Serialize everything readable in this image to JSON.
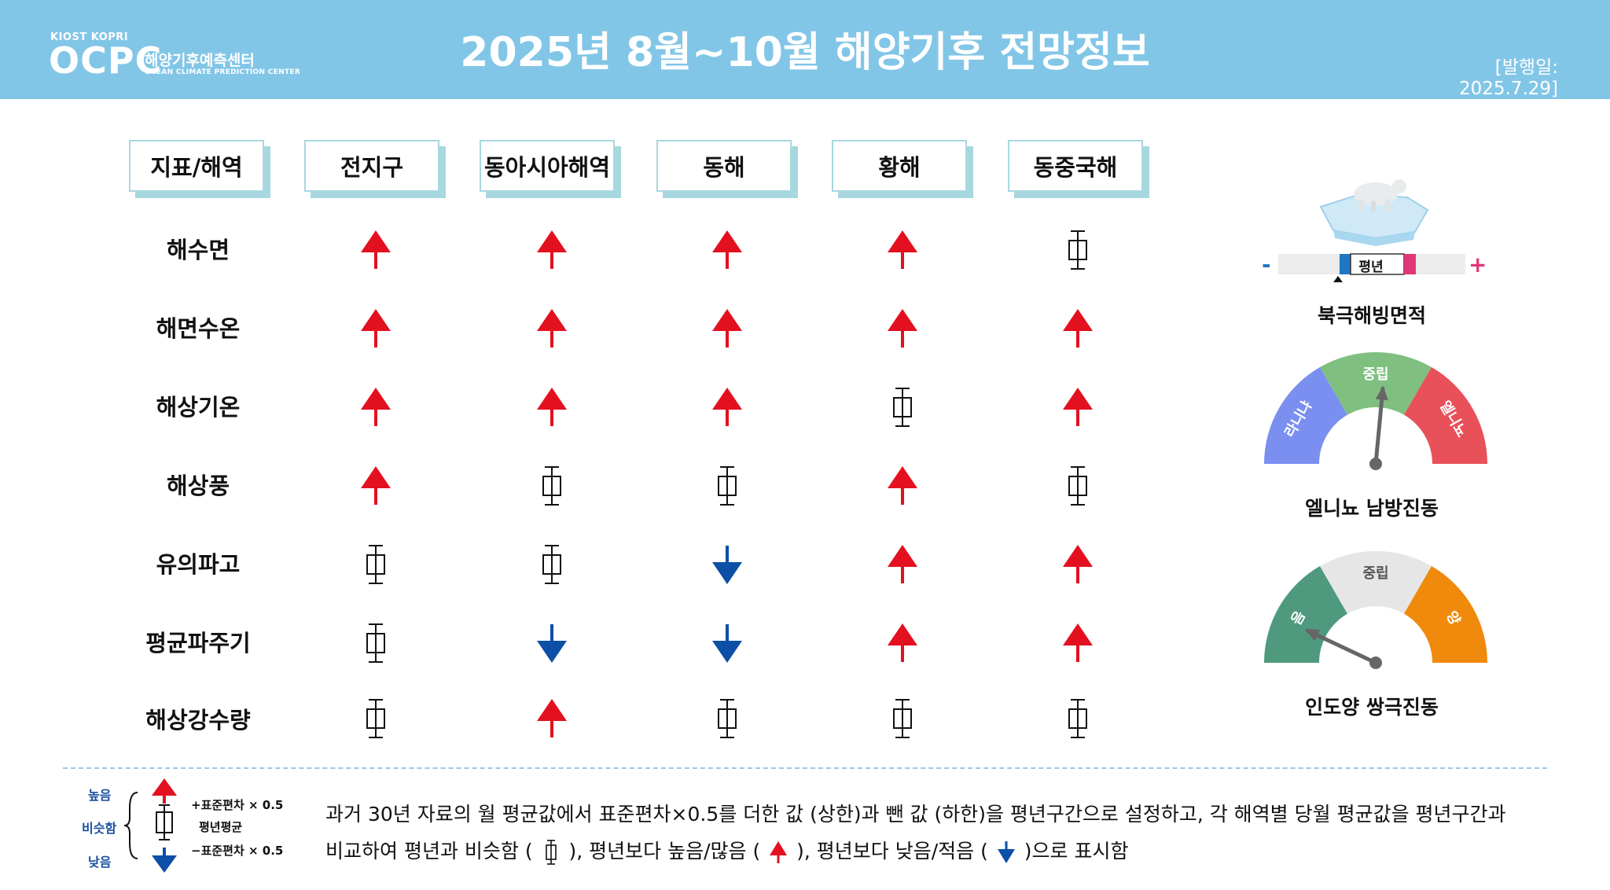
{
  "header": {
    "logo_top": "KIOST  KOPRI",
    "logo_main": "OCPC",
    "logo_kr": "해양기후예측센터",
    "logo_en": "OCEAN CLIMATE PREDICTION CENTER",
    "title": "2025년 8월~10월 해양기후 전망정보",
    "issue_date": "[발행일: 2025.7.29]"
  },
  "table": {
    "columns": [
      "지표/해역",
      "전지구",
      "동아시아해역",
      "동해",
      "황해",
      "동중국해"
    ],
    "rows": [
      {
        "label": "해수면",
        "values": [
          "up",
          "up",
          "up",
          "up",
          "normal"
        ]
      },
      {
        "label": "해면수온",
        "values": [
          "up",
          "up",
          "up",
          "up",
          "up"
        ]
      },
      {
        "label": "해상기온",
        "values": [
          "up",
          "up",
          "up",
          "normal",
          "up"
        ]
      },
      {
        "label": "해상풍",
        "values": [
          "up",
          "normal",
          "normal",
          "up",
          "normal"
        ]
      },
      {
        "label": "유의파고",
        "values": [
          "normal",
          "normal",
          "down",
          "up",
          "up"
        ]
      },
      {
        "label": "평균파주기",
        "values": [
          "normal",
          "down",
          "down",
          "up",
          "up"
        ]
      },
      {
        "label": "해상강수량",
        "values": [
          "normal",
          "up",
          "normal",
          "normal",
          "normal"
        ]
      }
    ]
  },
  "side": {
    "arctic": {
      "label": "북극해빙면적",
      "bar_label": "평년",
      "minus": "-",
      "plus": "+"
    },
    "enso": {
      "label": "엘니뇨 남방진동",
      "segments": [
        "라니냐",
        "중립",
        "엘니뇨"
      ],
      "colors": [
        "#7b8ff0",
        "#7fbf7f",
        "#e8505a"
      ],
      "needle_level": 0.53
    },
    "iod": {
      "label": "인도양 쌍극진동",
      "segments": [
        "음",
        "중립",
        "양"
      ],
      "colors": [
        "#4f9a7e",
        "#e6e6e6",
        "#f08a0c"
      ],
      "needle_level": 0.14
    }
  },
  "legend": {
    "high": "높음",
    "similar": "비슷함",
    "low": "낮음",
    "plus_sd": "+표준편차 × 0.5",
    "mean": "평년평균",
    "minus_sd": "−표준편차 × 0.5",
    "line1": "과거 30년 자료의 월 평균값에서 표준편차×0.5를   더한 값 (상한)과 뺀 값 (하한)을 평년구간으로   설정하고, 각 해역별  당월 평균값을 평년구간과",
    "line2_a": "비교하여 평년과 비슷함 (",
    "line2_b": "),   평년보다  높음/많음 (",
    "line2_c": "), 평년보다  낮음/적음 (",
    "line2_d": ")으로  표시함"
  },
  "colors": {
    "up": "#e3101f",
    "down": "#0b4fa6",
    "header_bg": "#82c6e7",
    "box_shadow": "#a8d8df"
  }
}
